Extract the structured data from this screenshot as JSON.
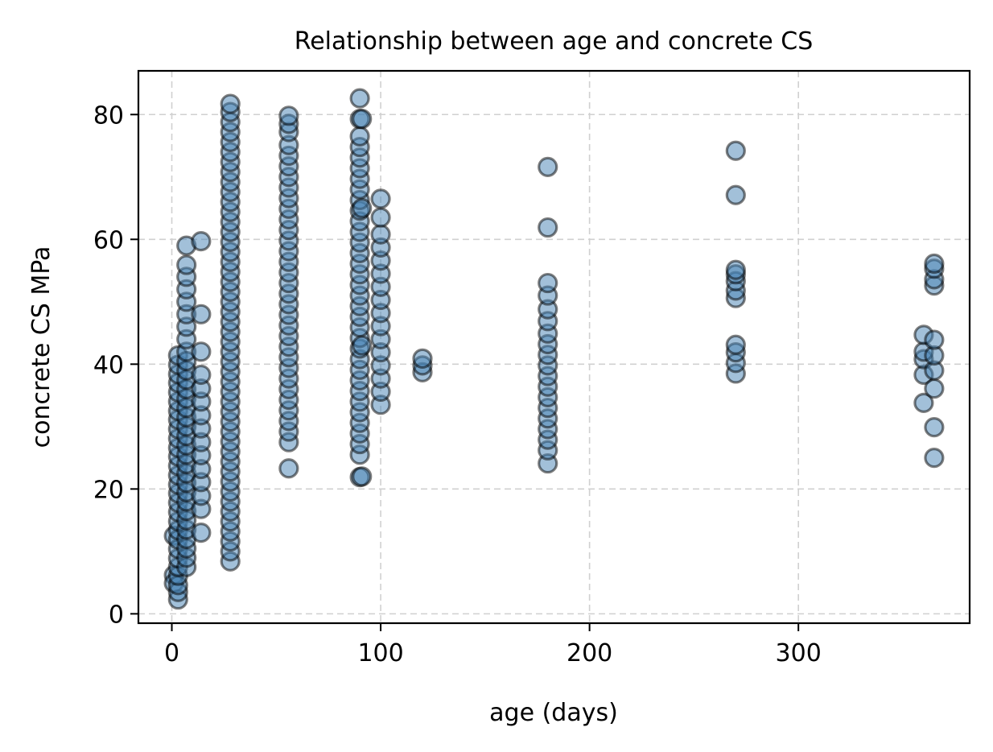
{
  "chart_data": {
    "type": "scatter",
    "title": "Relationship between age and concrete CS",
    "xlabel": "age (days)",
    "ylabel": "concrete CS MPa",
    "xlim": [
      -16,
      382
    ],
    "ylim": [
      -1.5,
      87
    ],
    "xticks": [
      0,
      100,
      200,
      300
    ],
    "yticks": [
      0,
      20,
      40,
      60,
      80
    ],
    "grid": true,
    "marker_face_color": "#4682b4",
    "marker_face_alpha": 0.5,
    "marker_edge_color": "#000000",
    "marker_edge_alpha": 0.5,
    "series": [
      {
        "points": [
          [
            1,
            12.5
          ],
          [
            1,
            6.2
          ],
          [
            1,
            4.9
          ],
          [
            3,
            2.3
          ],
          [
            3,
            3.5
          ],
          [
            3,
            4.6
          ],
          [
            3,
            6.1
          ],
          [
            3,
            7.5
          ],
          [
            3,
            8.9
          ],
          [
            3,
            10.4
          ],
          [
            3,
            11.9
          ],
          [
            3,
            13.4
          ],
          [
            3,
            14.8
          ],
          [
            3,
            16.3
          ],
          [
            3,
            17.8
          ],
          [
            3,
            19.3
          ],
          [
            3,
            20.7
          ],
          [
            3,
            22.2
          ],
          [
            3,
            23.7
          ],
          [
            3,
            25.2
          ],
          [
            3,
            26.6
          ],
          [
            3,
            28.1
          ],
          [
            3,
            29.6
          ],
          [
            3,
            31.1
          ],
          [
            3,
            32.5
          ],
          [
            3,
            34.0
          ],
          [
            3,
            35.5
          ],
          [
            3,
            37.0
          ],
          [
            3,
            38.4
          ],
          [
            3,
            39.9
          ],
          [
            3,
            41.4
          ],
          [
            7,
            7.5
          ],
          [
            7,
            9.0
          ],
          [
            7,
            10.5
          ],
          [
            7,
            12.0
          ],
          [
            7,
            13.5
          ],
          [
            7,
            15.0
          ],
          [
            7,
            16.5
          ],
          [
            7,
            18.0
          ],
          [
            7,
            19.5
          ],
          [
            7,
            21.0
          ],
          [
            7,
            22.5
          ],
          [
            7,
            24.0
          ],
          [
            7,
            25.5
          ],
          [
            7,
            27.0
          ],
          [
            7,
            28.5
          ],
          [
            7,
            30.0
          ],
          [
            7,
            31.5
          ],
          [
            7,
            33.0
          ],
          [
            7,
            34.5
          ],
          [
            7,
            36.0
          ],
          [
            7,
            37.5
          ],
          [
            7,
            39.0
          ],
          [
            7,
            40.5
          ],
          [
            7,
            42.0
          ],
          [
            7,
            44.0
          ],
          [
            7,
            46.0
          ],
          [
            7,
            48.0
          ],
          [
            7,
            50.0
          ],
          [
            7,
            52.0
          ],
          [
            7,
            54.0
          ],
          [
            7,
            55.9
          ],
          [
            7,
            59.0
          ],
          [
            14,
            13.0
          ],
          [
            14,
            16.8
          ],
          [
            14,
            18.9
          ],
          [
            14,
            21.1
          ],
          [
            14,
            23.2
          ],
          [
            14,
            25.4
          ],
          [
            14,
            27.5
          ],
          [
            14,
            29.7
          ],
          [
            14,
            31.8
          ],
          [
            14,
            34.0
          ],
          [
            14,
            36.1
          ],
          [
            14,
            38.3
          ],
          [
            14,
            42.0
          ],
          [
            14,
            48.0
          ],
          [
            14,
            59.7
          ],
          [
            28,
            8.4
          ],
          [
            28,
            10.0
          ],
          [
            28,
            11.6
          ],
          [
            28,
            13.2
          ],
          [
            28,
            14.8
          ],
          [
            28,
            16.4
          ],
          [
            28,
            18.0
          ],
          [
            28,
            19.6
          ],
          [
            28,
            21.2
          ],
          [
            28,
            22.8
          ],
          [
            28,
            24.4
          ],
          [
            28,
            26.0
          ],
          [
            28,
            27.6
          ],
          [
            28,
            29.2
          ],
          [
            28,
            30.8
          ],
          [
            28,
            32.4
          ],
          [
            28,
            34.0
          ],
          [
            28,
            35.6
          ],
          [
            28,
            37.2
          ],
          [
            28,
            38.8
          ],
          [
            28,
            40.4
          ],
          [
            28,
            42.0
          ],
          [
            28,
            43.6
          ],
          [
            28,
            45.2
          ],
          [
            28,
            46.8
          ],
          [
            28,
            48.4
          ],
          [
            28,
            50.0
          ],
          [
            28,
            51.6
          ],
          [
            28,
            53.2
          ],
          [
            28,
            54.8
          ],
          [
            28,
            56.4
          ],
          [
            28,
            58.0
          ],
          [
            28,
            59.6
          ],
          [
            28,
            61.2
          ],
          [
            28,
            62.8
          ],
          [
            28,
            64.4
          ],
          [
            28,
            66.0
          ],
          [
            28,
            67.6
          ],
          [
            28,
            69.2
          ],
          [
            28,
            70.8
          ],
          [
            28,
            72.4
          ],
          [
            28,
            74.0
          ],
          [
            28,
            75.6
          ],
          [
            28,
            77.2
          ],
          [
            28,
            78.8
          ],
          [
            28,
            80.4
          ],
          [
            28,
            81.7
          ],
          [
            56,
            23.3
          ],
          [
            56,
            27.5
          ],
          [
            56,
            29.2
          ],
          [
            56,
            30.9
          ],
          [
            56,
            32.6
          ],
          [
            56,
            34.3
          ],
          [
            56,
            36.0
          ],
          [
            56,
            37.7
          ],
          [
            56,
            39.4
          ],
          [
            56,
            41.1
          ],
          [
            56,
            42.8
          ],
          [
            56,
            44.5
          ],
          [
            56,
            46.2
          ],
          [
            56,
            47.9
          ],
          [
            56,
            49.6
          ],
          [
            56,
            51.3
          ],
          [
            56,
            53.0
          ],
          [
            56,
            54.7
          ],
          [
            56,
            56.4
          ],
          [
            56,
            58.1
          ],
          [
            56,
            59.8
          ],
          [
            56,
            61.5
          ],
          [
            56,
            63.2
          ],
          [
            56,
            64.9
          ],
          [
            56,
            66.6
          ],
          [
            56,
            68.3
          ],
          [
            56,
            70.0
          ],
          [
            56,
            71.7
          ],
          [
            56,
            73.4
          ],
          [
            56,
            75.1
          ],
          [
            56,
            77.2
          ],
          [
            56,
            78.5
          ],
          [
            56,
            79.8
          ],
          [
            90,
            21.9
          ],
          [
            90,
            25.5
          ],
          [
            90,
            27.2
          ],
          [
            90,
            28.9
          ],
          [
            90,
            30.6
          ],
          [
            90,
            32.3
          ],
          [
            90,
            34.0
          ],
          [
            90,
            35.7
          ],
          [
            90,
            37.4
          ],
          [
            90,
            39.1
          ],
          [
            90,
            40.8
          ],
          [
            90,
            42.5
          ],
          [
            90,
            44.2
          ],
          [
            90,
            45.9
          ],
          [
            90,
            47.6
          ],
          [
            90,
            49.3
          ],
          [
            90,
            51.0
          ],
          [
            90,
            52.7
          ],
          [
            90,
            54.4
          ],
          [
            90,
            56.1
          ],
          [
            90,
            57.8
          ],
          [
            90,
            59.5
          ],
          [
            90,
            61.2
          ],
          [
            90,
            62.9
          ],
          [
            90,
            64.6
          ],
          [
            90,
            66.3
          ],
          [
            90,
            68.0
          ],
          [
            90,
            69.7
          ],
          [
            90,
            71.4
          ],
          [
            90,
            73.1
          ],
          [
            90,
            74.8
          ],
          [
            90,
            76.5
          ],
          [
            90,
            79.3
          ],
          [
            90,
            82.6
          ],
          [
            91,
            22.0
          ],
          [
            91,
            43.0
          ],
          [
            91,
            65.0
          ],
          [
            91,
            79.3
          ],
          [
            100,
            33.5
          ],
          [
            100,
            35.6
          ],
          [
            100,
            37.7
          ],
          [
            100,
            39.8
          ],
          [
            100,
            41.9
          ],
          [
            100,
            44.0
          ],
          [
            100,
            46.1
          ],
          [
            100,
            48.2
          ],
          [
            100,
            50.3
          ],
          [
            100,
            52.4
          ],
          [
            100,
            54.5
          ],
          [
            100,
            56.6
          ],
          [
            100,
            58.7
          ],
          [
            100,
            60.8
          ],
          [
            100,
            63.5
          ],
          [
            100,
            66.5
          ],
          [
            120,
            38.7
          ],
          [
            120,
            39.8
          ],
          [
            120,
            40.9
          ],
          [
            180,
            24.1
          ],
          [
            180,
            26.2
          ],
          [
            180,
            27.9
          ],
          [
            180,
            29.6
          ],
          [
            180,
            31.3
          ],
          [
            180,
            33.0
          ],
          [
            180,
            34.7
          ],
          [
            180,
            36.4
          ],
          [
            180,
            38.1
          ],
          [
            180,
            39.8
          ],
          [
            180,
            41.5
          ],
          [
            180,
            43.2
          ],
          [
            180,
            44.9
          ],
          [
            180,
            46.9
          ],
          [
            180,
            48.8
          ],
          [
            180,
            51.0
          ],
          [
            180,
            53.0
          ],
          [
            180,
            61.9
          ],
          [
            180,
            71.6
          ],
          [
            270,
            38.5
          ],
          [
            270,
            40.2
          ],
          [
            270,
            41.9
          ],
          [
            270,
            43.1
          ],
          [
            270,
            50.6
          ],
          [
            270,
            51.8
          ],
          [
            270,
            53.3
          ],
          [
            270,
            54.4
          ],
          [
            270,
            55.1
          ],
          [
            270,
            67.1
          ],
          [
            270,
            74.2
          ],
          [
            360,
            33.8
          ],
          [
            360,
            38.3
          ],
          [
            360,
            40.8
          ],
          [
            360,
            42.0
          ],
          [
            360,
            44.7
          ],
          [
            365,
            25.0
          ],
          [
            365,
            29.9
          ],
          [
            365,
            36.1
          ],
          [
            365,
            39.0
          ],
          [
            365,
            41.4
          ],
          [
            365,
            43.9
          ],
          [
            365,
            52.6
          ],
          [
            365,
            53.6
          ],
          [
            365,
            55.3
          ],
          [
            365,
            56.1
          ]
        ]
      }
    ]
  }
}
